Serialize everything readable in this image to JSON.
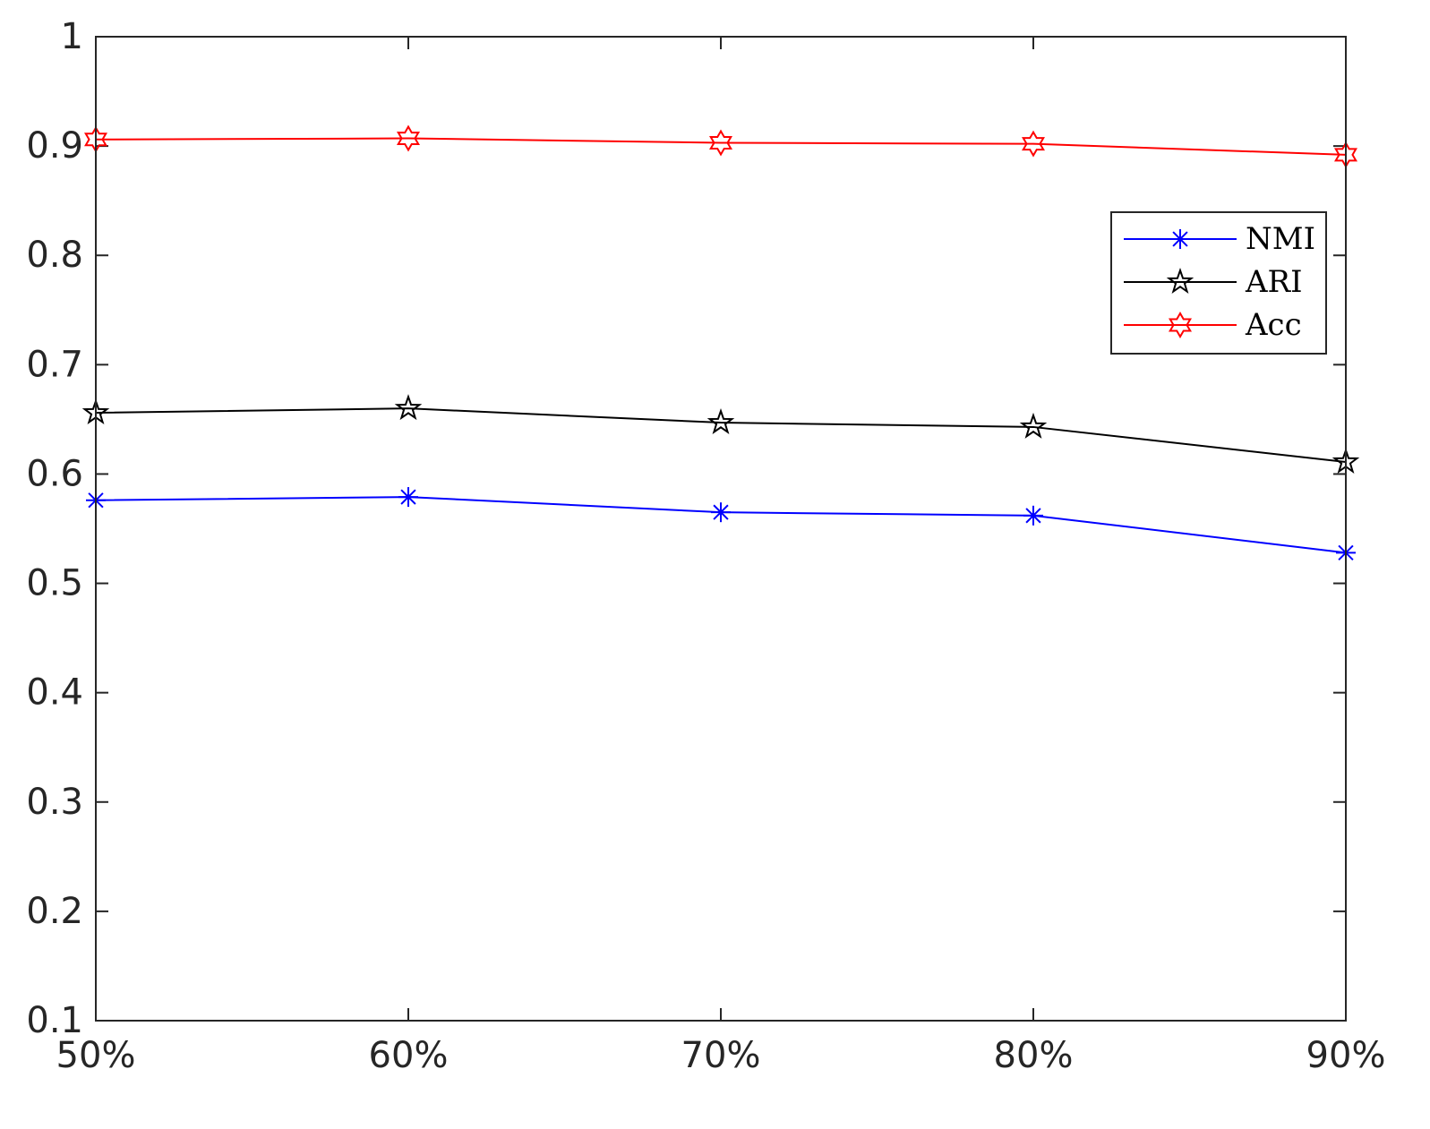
{
  "chart_data": {
    "type": "line",
    "x": [
      "50%",
      "60%",
      "70%",
      "80%",
      "90%"
    ],
    "ylim": [
      0.1,
      1
    ],
    "yticks": [
      0.1,
      0.2,
      0.3,
      0.4,
      0.5,
      0.6,
      0.7,
      0.8,
      0.9,
      1
    ],
    "ytick_labels": [
      "0.1",
      "0.2",
      "0.3",
      "0.4",
      "0.5",
      "0.6",
      "0.7",
      "0.8",
      "0.9",
      "1"
    ],
    "grid": false,
    "legend_position": "top-right",
    "series": [
      {
        "name": "NMI",
        "color": "#0000ff",
        "marker": "asterisk",
        "values": [
          0.576,
          0.579,
          0.565,
          0.562,
          0.528
        ]
      },
      {
        "name": "ARI",
        "color": "#000000",
        "marker": "pentagram",
        "values": [
          0.656,
          0.66,
          0.647,
          0.643,
          0.611
        ]
      },
      {
        "name": "Acc",
        "color": "#ff0000",
        "marker": "hexagram",
        "values": [
          0.906,
          0.907,
          0.903,
          0.902,
          0.892
        ]
      }
    ]
  }
}
